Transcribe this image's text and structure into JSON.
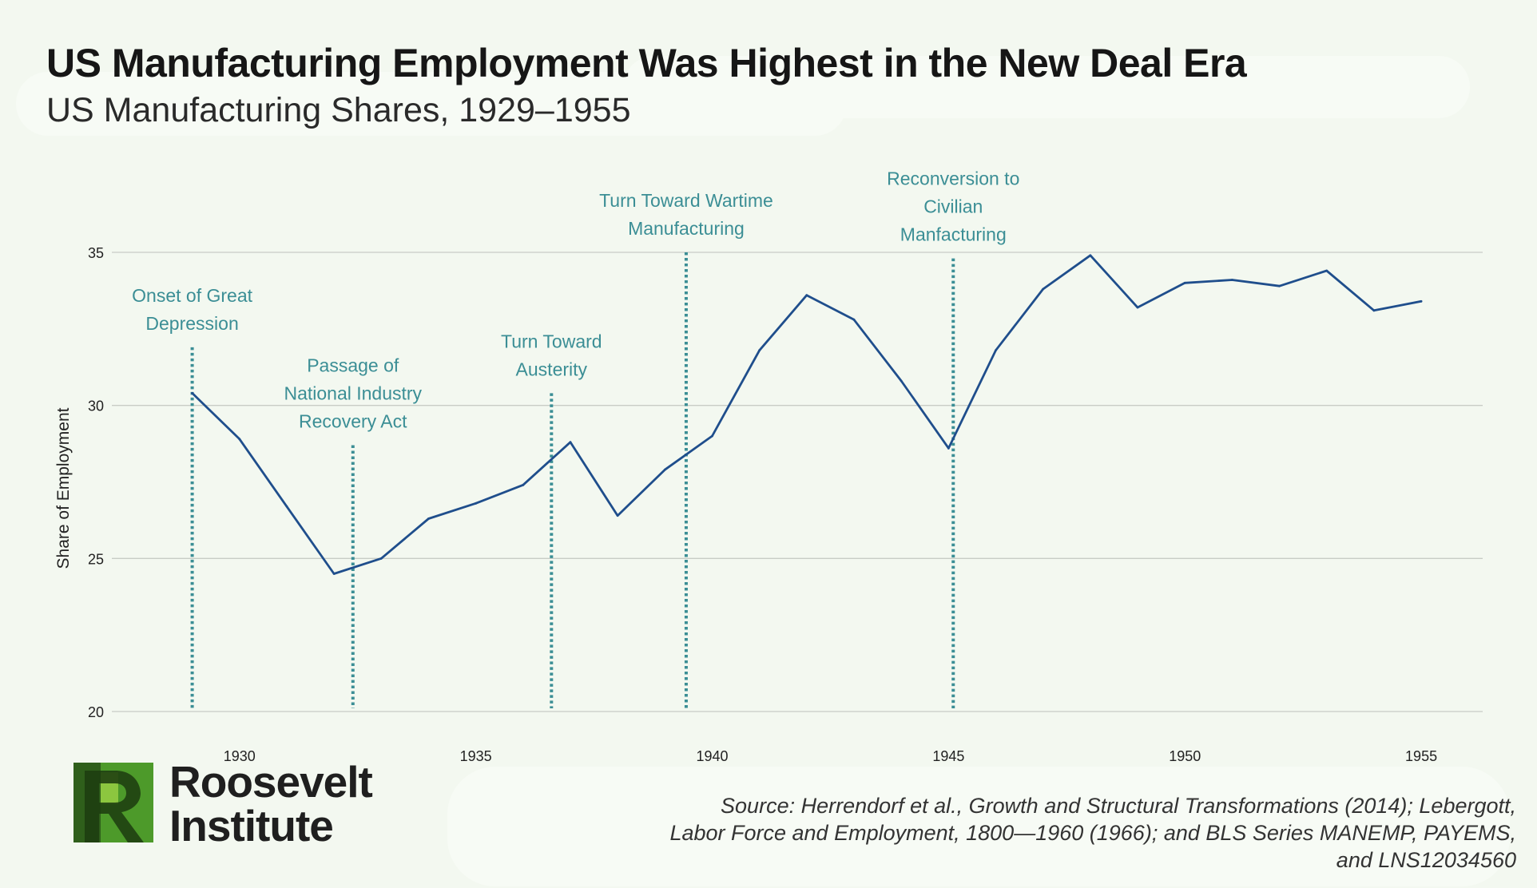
{
  "title": "US Manufacturing Employment Was Highest in the New Deal Era",
  "subtitle": "US Manufacturing Shares, 1929–1955",
  "brand": {
    "name_line1": "Roosevelt",
    "name_line2": "Institute",
    "logo_icon": "roosevelt-r-logo-icon",
    "logo_colors": {
      "dark_green": "#2f5f1b",
      "green": "#4d9a2a",
      "light_green": "#8cc63f"
    }
  },
  "source_lines": [
    "Source: Herrendorf et al., Growth and Structural Transformations (2014); Lebergott,",
    "Labor Force and Employment, 1800—1960 (1966); and BLS Series MANEMP, PAYEMS,",
    "and LNS12034560"
  ],
  "colors": {
    "line": "#1f4e8c",
    "annotation": "#3b8e95",
    "grid": "#c8ccc6",
    "background": "#f3f8f0"
  },
  "chart_data": {
    "type": "line",
    "ylabel": "Share of Employment",
    "xlabel": "",
    "ylim": [
      20,
      35
    ],
    "xlim": [
      1927.3,
      1956.3
    ],
    "yticks": [
      20,
      25,
      30,
      35
    ],
    "xticks": [
      1930,
      1935,
      1940,
      1945,
      1950,
      1955
    ],
    "grid": "horizontal",
    "series": [
      {
        "x": [
          1929,
          1930,
          1931,
          1932,
          1933,
          1934,
          1935,
          1936,
          1937,
          1938,
          1939,
          1940,
          1941,
          1942,
          1943,
          1944,
          1945,
          1946,
          1947,
          1948,
          1949,
          1950,
          1951,
          1952,
          1953,
          1954,
          1955
        ],
        "values": [
          30.4,
          28.9,
          26.7,
          24.5,
          25.0,
          26.3,
          26.8,
          27.4,
          28.8,
          26.4,
          27.9,
          29.0,
          31.8,
          33.6,
          32.8,
          30.8,
          28.6,
          31.8,
          33.8,
          34.9,
          33.2,
          34.0,
          34.1,
          33.9,
          34.4,
          33.1,
          33.4
        ]
      }
    ],
    "annotations": [
      {
        "x": 1929.0,
        "y_top": 31.9,
        "label_lines": [
          "Onset of Great",
          "Depression"
        ]
      },
      {
        "x": 1932.4,
        "y_top": 28.7,
        "label_lines": [
          "Passage of",
          "National Industry",
          "Recovery Act"
        ]
      },
      {
        "x": 1936.6,
        "y_top": 30.4,
        "label_lines": [
          "Turn Toward",
          "Austerity"
        ]
      },
      {
        "x": 1939.45,
        "y_top": 35.0,
        "label_lines": [
          "Turn Toward Wartime",
          "Manufacturing"
        ]
      },
      {
        "x": 1945.1,
        "y_top": 34.8,
        "label_lines": [
          "Reconversion to",
          "Civilian",
          "Manfacturing"
        ]
      }
    ]
  }
}
